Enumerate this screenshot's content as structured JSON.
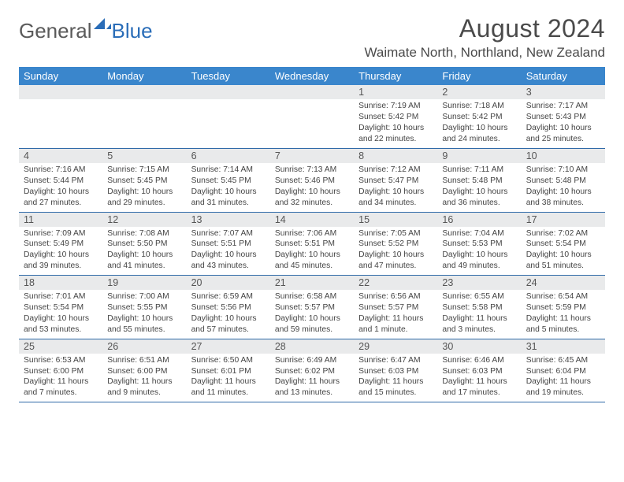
{
  "logo": {
    "part1": "General",
    "part2": "Blue"
  },
  "title": "August 2024",
  "location": "Waimate North, Northland, New Zealand",
  "colors": {
    "header_bg": "#3a86cc",
    "daynum_bg": "#e9eaeb",
    "week_border": "#2f6aa8",
    "logo_gray": "#5a5a5a",
    "logo_blue": "#2a6db8"
  },
  "daynames": [
    "Sunday",
    "Monday",
    "Tuesday",
    "Wednesday",
    "Thursday",
    "Friday",
    "Saturday"
  ],
  "weeks": [
    [
      {
        "day": "",
        "sunrise": "",
        "sunset": "",
        "daylight": ""
      },
      {
        "day": "",
        "sunrise": "",
        "sunset": "",
        "daylight": ""
      },
      {
        "day": "",
        "sunrise": "",
        "sunset": "",
        "daylight": ""
      },
      {
        "day": "",
        "sunrise": "",
        "sunset": "",
        "daylight": ""
      },
      {
        "day": "1",
        "sunrise": "Sunrise: 7:19 AM",
        "sunset": "Sunset: 5:42 PM",
        "daylight": "Daylight: 10 hours and 22 minutes."
      },
      {
        "day": "2",
        "sunrise": "Sunrise: 7:18 AM",
        "sunset": "Sunset: 5:42 PM",
        "daylight": "Daylight: 10 hours and 24 minutes."
      },
      {
        "day": "3",
        "sunrise": "Sunrise: 7:17 AM",
        "sunset": "Sunset: 5:43 PM",
        "daylight": "Daylight: 10 hours and 25 minutes."
      }
    ],
    [
      {
        "day": "4",
        "sunrise": "Sunrise: 7:16 AM",
        "sunset": "Sunset: 5:44 PM",
        "daylight": "Daylight: 10 hours and 27 minutes."
      },
      {
        "day": "5",
        "sunrise": "Sunrise: 7:15 AM",
        "sunset": "Sunset: 5:45 PM",
        "daylight": "Daylight: 10 hours and 29 minutes."
      },
      {
        "day": "6",
        "sunrise": "Sunrise: 7:14 AM",
        "sunset": "Sunset: 5:45 PM",
        "daylight": "Daylight: 10 hours and 31 minutes."
      },
      {
        "day": "7",
        "sunrise": "Sunrise: 7:13 AM",
        "sunset": "Sunset: 5:46 PM",
        "daylight": "Daylight: 10 hours and 32 minutes."
      },
      {
        "day": "8",
        "sunrise": "Sunrise: 7:12 AM",
        "sunset": "Sunset: 5:47 PM",
        "daylight": "Daylight: 10 hours and 34 minutes."
      },
      {
        "day": "9",
        "sunrise": "Sunrise: 7:11 AM",
        "sunset": "Sunset: 5:48 PM",
        "daylight": "Daylight: 10 hours and 36 minutes."
      },
      {
        "day": "10",
        "sunrise": "Sunrise: 7:10 AM",
        "sunset": "Sunset: 5:48 PM",
        "daylight": "Daylight: 10 hours and 38 minutes."
      }
    ],
    [
      {
        "day": "11",
        "sunrise": "Sunrise: 7:09 AM",
        "sunset": "Sunset: 5:49 PM",
        "daylight": "Daylight: 10 hours and 39 minutes."
      },
      {
        "day": "12",
        "sunrise": "Sunrise: 7:08 AM",
        "sunset": "Sunset: 5:50 PM",
        "daylight": "Daylight: 10 hours and 41 minutes."
      },
      {
        "day": "13",
        "sunrise": "Sunrise: 7:07 AM",
        "sunset": "Sunset: 5:51 PM",
        "daylight": "Daylight: 10 hours and 43 minutes."
      },
      {
        "day": "14",
        "sunrise": "Sunrise: 7:06 AM",
        "sunset": "Sunset: 5:51 PM",
        "daylight": "Daylight: 10 hours and 45 minutes."
      },
      {
        "day": "15",
        "sunrise": "Sunrise: 7:05 AM",
        "sunset": "Sunset: 5:52 PM",
        "daylight": "Daylight: 10 hours and 47 minutes."
      },
      {
        "day": "16",
        "sunrise": "Sunrise: 7:04 AM",
        "sunset": "Sunset: 5:53 PM",
        "daylight": "Daylight: 10 hours and 49 minutes."
      },
      {
        "day": "17",
        "sunrise": "Sunrise: 7:02 AM",
        "sunset": "Sunset: 5:54 PM",
        "daylight": "Daylight: 10 hours and 51 minutes."
      }
    ],
    [
      {
        "day": "18",
        "sunrise": "Sunrise: 7:01 AM",
        "sunset": "Sunset: 5:54 PM",
        "daylight": "Daylight: 10 hours and 53 minutes."
      },
      {
        "day": "19",
        "sunrise": "Sunrise: 7:00 AM",
        "sunset": "Sunset: 5:55 PM",
        "daylight": "Daylight: 10 hours and 55 minutes."
      },
      {
        "day": "20",
        "sunrise": "Sunrise: 6:59 AM",
        "sunset": "Sunset: 5:56 PM",
        "daylight": "Daylight: 10 hours and 57 minutes."
      },
      {
        "day": "21",
        "sunrise": "Sunrise: 6:58 AM",
        "sunset": "Sunset: 5:57 PM",
        "daylight": "Daylight: 10 hours and 59 minutes."
      },
      {
        "day": "22",
        "sunrise": "Sunrise: 6:56 AM",
        "sunset": "Sunset: 5:57 PM",
        "daylight": "Daylight: 11 hours and 1 minute."
      },
      {
        "day": "23",
        "sunrise": "Sunrise: 6:55 AM",
        "sunset": "Sunset: 5:58 PM",
        "daylight": "Daylight: 11 hours and 3 minutes."
      },
      {
        "day": "24",
        "sunrise": "Sunrise: 6:54 AM",
        "sunset": "Sunset: 5:59 PM",
        "daylight": "Daylight: 11 hours and 5 minutes."
      }
    ],
    [
      {
        "day": "25",
        "sunrise": "Sunrise: 6:53 AM",
        "sunset": "Sunset: 6:00 PM",
        "daylight": "Daylight: 11 hours and 7 minutes."
      },
      {
        "day": "26",
        "sunrise": "Sunrise: 6:51 AM",
        "sunset": "Sunset: 6:00 PM",
        "daylight": "Daylight: 11 hours and 9 minutes."
      },
      {
        "day": "27",
        "sunrise": "Sunrise: 6:50 AM",
        "sunset": "Sunset: 6:01 PM",
        "daylight": "Daylight: 11 hours and 11 minutes."
      },
      {
        "day": "28",
        "sunrise": "Sunrise: 6:49 AM",
        "sunset": "Sunset: 6:02 PM",
        "daylight": "Daylight: 11 hours and 13 minutes."
      },
      {
        "day": "29",
        "sunrise": "Sunrise: 6:47 AM",
        "sunset": "Sunset: 6:03 PM",
        "daylight": "Daylight: 11 hours and 15 minutes."
      },
      {
        "day": "30",
        "sunrise": "Sunrise: 6:46 AM",
        "sunset": "Sunset: 6:03 PM",
        "daylight": "Daylight: 11 hours and 17 minutes."
      },
      {
        "day": "31",
        "sunrise": "Sunrise: 6:45 AM",
        "sunset": "Sunset: 6:04 PM",
        "daylight": "Daylight: 11 hours and 19 minutes."
      }
    ]
  ]
}
